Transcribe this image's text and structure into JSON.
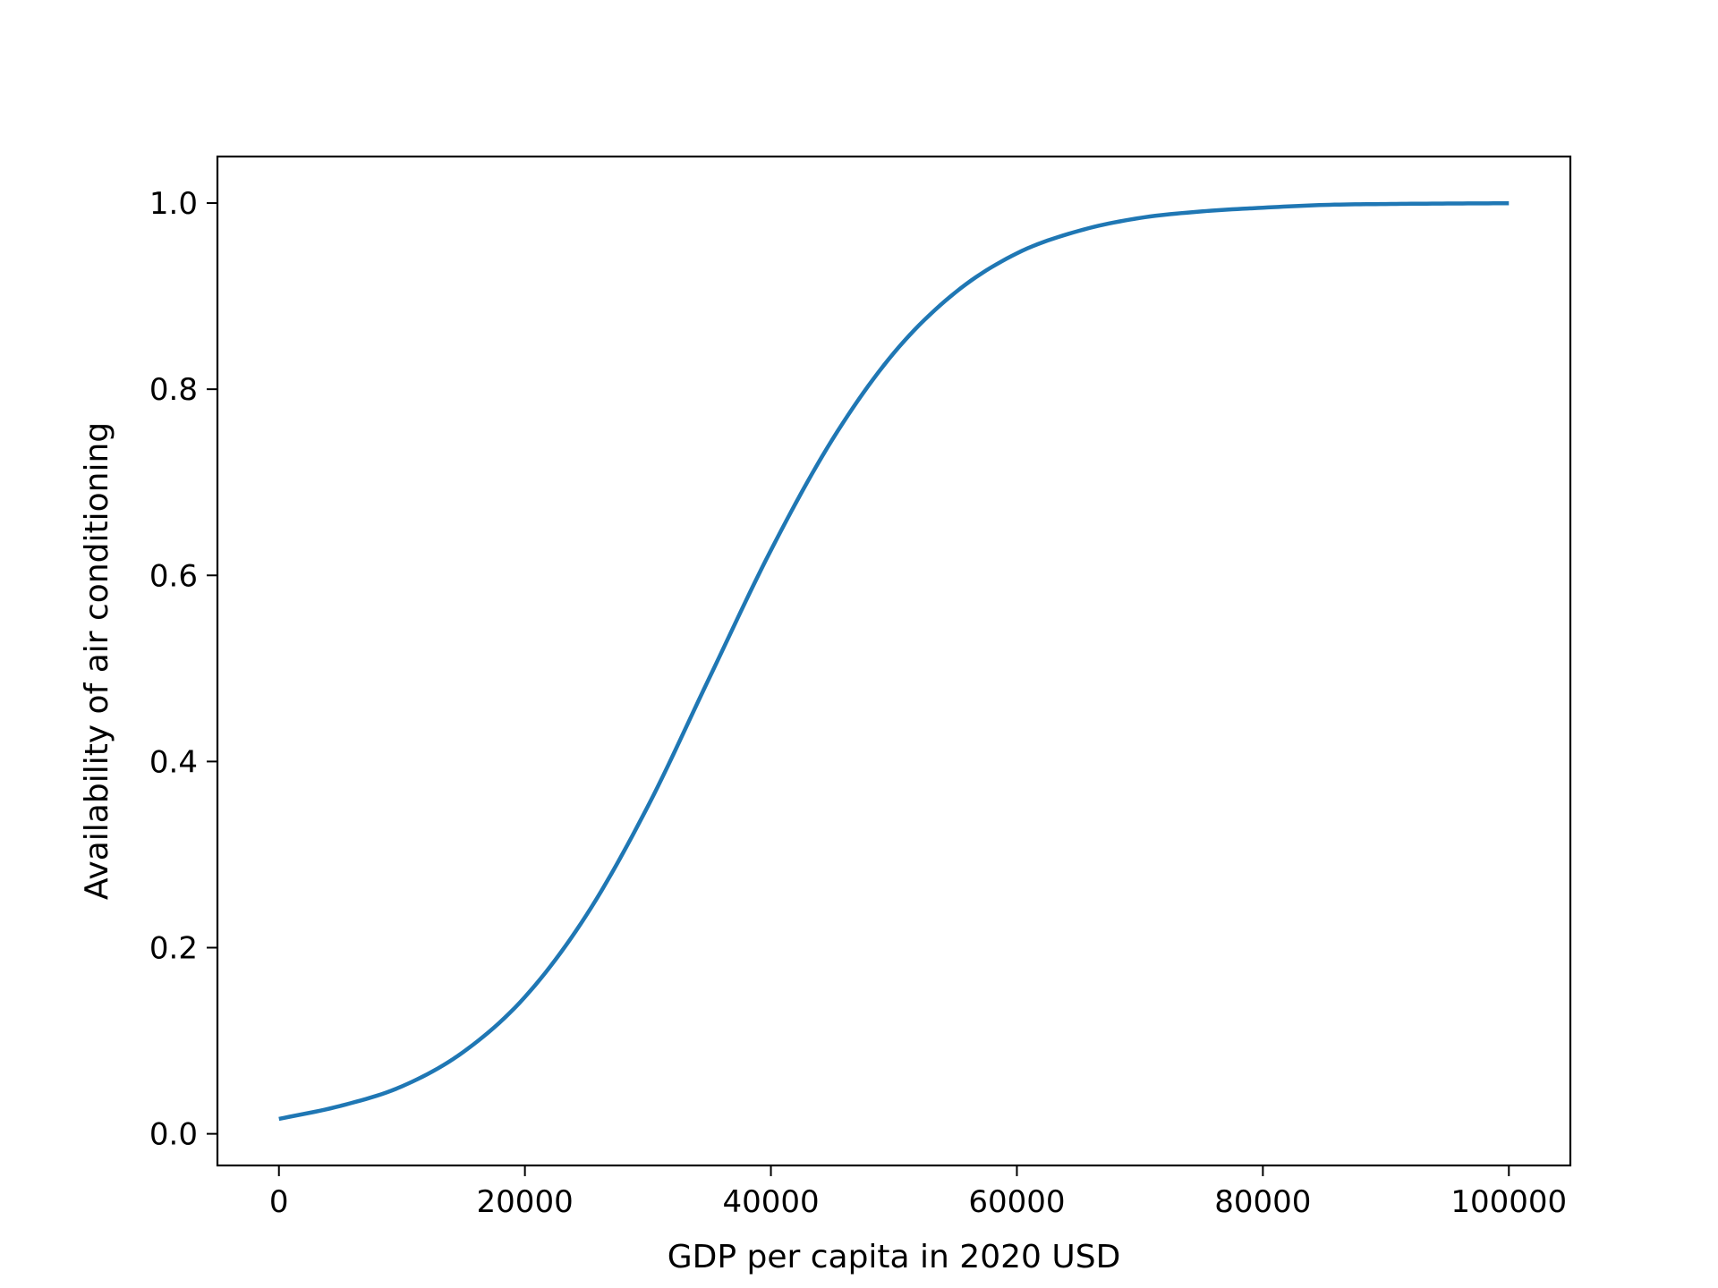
{
  "chart_data": {
    "type": "line",
    "title": "",
    "xlabel": "GDP per capita in 2020 USD",
    "ylabel": "Availability of air conditioning",
    "xlim": [
      -5000,
      105000
    ],
    "ylim": [
      -0.034,
      1.05
    ],
    "xticks": [
      0,
      20000,
      40000,
      60000,
      80000,
      100000
    ],
    "xtick_labels": [
      "0",
      "20000",
      "40000",
      "60000",
      "80000",
      "100000"
    ],
    "yticks": [
      0.0,
      0.2,
      0.4,
      0.6,
      0.8,
      1.0
    ],
    "ytick_labels": [
      "0.0",
      "0.2",
      "0.4",
      "0.6",
      "0.8",
      "1.0"
    ],
    "grid": false,
    "legend": "none",
    "series": [
      {
        "color": "#1f77b4",
        "x": [
          0,
          5000,
          10000,
          15000,
          20000,
          25000,
          30000,
          35000,
          40000,
          45000,
          50000,
          55000,
          60000,
          65000,
          70000,
          75000,
          80000,
          85000,
          90000,
          95000,
          100000
        ],
        "y": [
          0.016,
          0.03,
          0.051,
          0.088,
          0.147,
          0.235,
          0.352,
          0.49,
          0.627,
          0.746,
          0.839,
          0.904,
          0.946,
          0.97,
          0.984,
          0.991,
          0.995,
          0.998,
          0.999,
          0.9995,
          0.9998
        ]
      }
    ]
  }
}
